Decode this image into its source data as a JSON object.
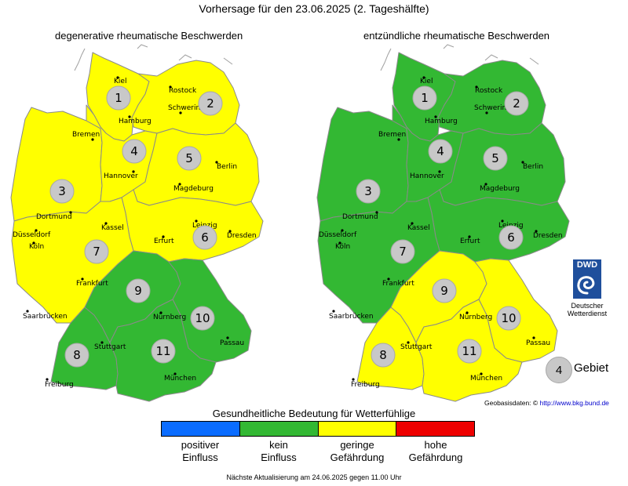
{
  "title": "Vorhersage für den 23.06.2025 (2. Tageshälfte)",
  "maps": [
    {
      "subtitle": "degenerative rheumatische Beschwerden",
      "region_levels": [
        "gering",
        "gering",
        "gering",
        "gering",
        "gering",
        "gering",
        "gering",
        "kein",
        "kein",
        "kein",
        "kein"
      ]
    },
    {
      "subtitle": "entzündliche rheumatische Beschwerden",
      "region_levels": [
        "kein",
        "kein",
        "kein",
        "kein",
        "kein",
        "kein",
        "kein",
        "gering",
        "gering",
        "gering",
        "gering"
      ]
    }
  ],
  "region_numbers": [
    "1",
    "2",
    "3",
    "4",
    "5",
    "6",
    "7",
    "8",
    "9",
    "10",
    "11"
  ],
  "cities": [
    "Kiel",
    "Rostock",
    "Hamburg",
    "Schwerin",
    "Bremen",
    "Berlin",
    "Hannover",
    "Magdeburg",
    "Dortmund",
    "Düsseldorf",
    "Kassel",
    "Köln",
    "Leipzig",
    "Dresden",
    "Erfurt",
    "Frankfurt",
    "Nürnberg",
    "Saarbrücken",
    "Stuttgart",
    "Passau",
    "München",
    "Freiburg"
  ],
  "colors": {
    "positiver": "#0a6cff",
    "kein": "#33b833",
    "gering": "#ffff00",
    "hohe": "#ee0000"
  },
  "logo": {
    "text": "DWD",
    "caption_line1": "Deutscher",
    "caption_line2": "Wetterdienst"
  },
  "area_legend": {
    "number": "4",
    "label": "Gebiet"
  },
  "source": {
    "label": "Geobasisdaten: ©",
    "link": "http://www.bkg.bund.de"
  },
  "legend": {
    "title": "Gesundheitliche Bedeutung für Wetterfühlige",
    "items": [
      {
        "key": "positiver",
        "label": "positiver\nEinfluss"
      },
      {
        "key": "kein",
        "label": "kein\nEinfluss"
      },
      {
        "key": "gering",
        "label": "geringe\nGefährdung"
      },
      {
        "key": "hohe",
        "label": "hohe\nGefährdung"
      }
    ]
  },
  "footer": "Nächste Aktualisierung am 24.06.2025 gegen 11.00 Uhr"
}
